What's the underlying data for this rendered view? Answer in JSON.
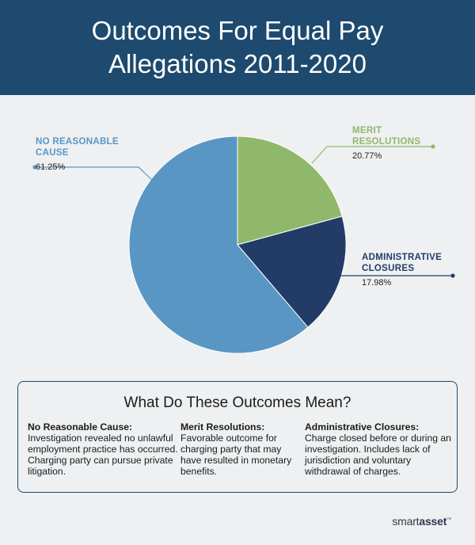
{
  "header": {
    "title": "Outcomes For Equal Pay Allegations 2011-2020"
  },
  "chart_data": {
    "type": "pie",
    "title": "Outcomes For Equal Pay Allegations 2011-2020",
    "slices": [
      {
        "label": "MERIT RESOLUTIONS",
        "value": 20.77,
        "display": "20.77%",
        "color": "#8fb86a"
      },
      {
        "label": "ADMINISTRATIVE CLOSURES",
        "value": 17.98,
        "display": "17.98%",
        "color": "#223c67"
      },
      {
        "label": "NO REASONABLE CAUSE",
        "value": 61.25,
        "display": "61.25%",
        "color": "#5996c4"
      }
    ],
    "label_colors": {
      "MERIT RESOLUTIONS": "#8fb86a",
      "ADMINISTRATIVE CLOSURES": "#223c67",
      "NO REASONABLE CAUSE": "#5996c4"
    }
  },
  "legend": {
    "heading": "What Do These Outcomes Mean?",
    "items": [
      {
        "title": "No Reasonable Cause:",
        "text": "Investigation revealed no unlawful employment practice has occurred. Charging party can pursue private litigation."
      },
      {
        "title": "Merit Resolutions:",
        "text": "Favorable outcome for charging party that may have resulted in monetary benefits."
      },
      {
        "title": "Administrative Closures:",
        "text": "Charge closed before or during an investigation. Includes lack of jurisdiction and voluntary withdrawal of charges."
      }
    ]
  },
  "brand": {
    "name_light": "smart",
    "name_bold": "asset",
    "mark": "™"
  }
}
